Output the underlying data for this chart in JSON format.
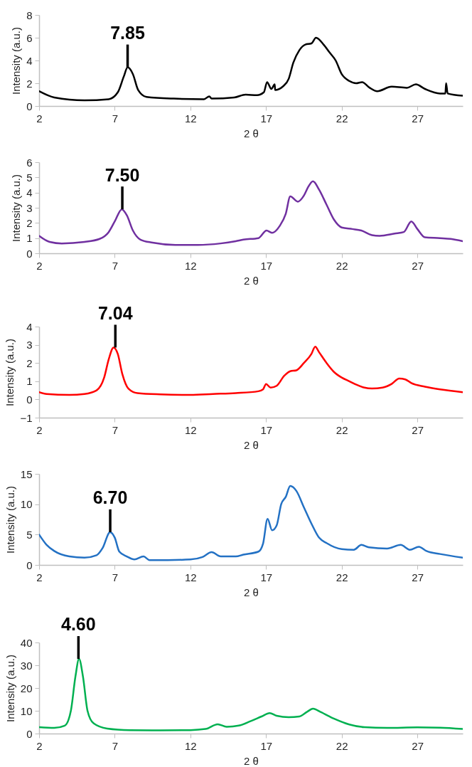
{
  "chart_data": [
    {
      "type": "line",
      "xlabel": "2 θ",
      "ylabel": "Intensity (a.u.)",
      "xlim": [
        2,
        30
      ],
      "xticks": [
        2,
        7,
        12,
        17,
        22,
        27
      ],
      "ylim": [
        0,
        8
      ],
      "yticks": [
        0,
        2,
        4,
        6,
        8
      ],
      "grid": false,
      "x": [
        2,
        3,
        5,
        6.6,
        7.2,
        7.6,
        7.85,
        8.2,
        8.55,
        9.1,
        10.9,
        12.9,
        13.25,
        13.4,
        14.9,
        15.65,
        16.4,
        16.85,
        17.07,
        17.35,
        17.57,
        17.6,
        18.1,
        18.5,
        18.8,
        19.2,
        19.6,
        20,
        20.3,
        20.8,
        21.2,
        21.6,
        22,
        22.5,
        22.95,
        23.35,
        23.85,
        24.35,
        25.3,
        26.3,
        26.9,
        27.5,
        28.5,
        28.85,
        28.9,
        29,
        30
      ],
      "series": [
        {
          "color": "#000000",
          "values": [
            1.3,
            0.75,
            0.5,
            0.6,
            1.2,
            2.6,
            3.4,
            2.8,
            1.4,
            0.8,
            0.65,
            0.6,
            0.85,
            0.65,
            0.75,
            1.0,
            0.95,
            1.2,
            2.1,
            1.5,
            1.9,
            1.4,
            1.7,
            2.4,
            3.8,
            4.9,
            5.4,
            5.5,
            6.0,
            5.4,
            4.7,
            4.0,
            2.8,
            2.2,
            2.0,
            2.1,
            1.6,
            1.3,
            1.7,
            1.6,
            1.9,
            1.5,
            1.1,
            1.1,
            2.0,
            1.1,
            0.9
          ]
        }
      ],
      "annotations": [
        {
          "text": "7.85",
          "x": 7.85,
          "y": 3.4
        }
      ]
    },
    {
      "type": "line",
      "xlabel": "2 θ",
      "ylabel": "Intensity (a.u.)",
      "xlim": [
        2,
        30
      ],
      "xticks": [
        2,
        7,
        12,
        17,
        22,
        27
      ],
      "ylim": [
        0,
        6
      ],
      "yticks": [
        0,
        1,
        2,
        3,
        4,
        5,
        6
      ],
      "grid": false,
      "x": [
        2,
        2.7,
        3.5,
        5,
        6,
        6.6,
        7,
        7.47,
        7.8,
        8.2,
        8.7,
        9.5,
        11,
        12.5,
        14,
        15,
        15.5,
        16.5,
        17.03,
        17.4,
        17.9,
        18.3,
        18.6,
        19.1,
        19.5,
        19.8,
        20.1,
        20.5,
        21,
        21.5,
        22,
        22.7,
        23.3,
        24,
        24.5,
        25.5,
        26.1,
        26.6,
        27,
        27.5,
        28.5,
        29.2,
        30
      ],
      "series": [
        {
          "color": "#7030a0",
          "values": [
            1.15,
            0.75,
            0.65,
            0.75,
            0.95,
            1.4,
            2.1,
            2.9,
            2.5,
            1.5,
            0.9,
            0.7,
            0.55,
            0.55,
            0.65,
            0.8,
            0.9,
            1.0,
            1.5,
            1.35,
            1.8,
            2.6,
            3.75,
            3.4,
            3.8,
            4.4,
            4.75,
            4.2,
            3.2,
            2.2,
            1.7,
            1.6,
            1.5,
            1.2,
            1.15,
            1.3,
            1.4,
            2.1,
            1.6,
            1.05,
            1.0,
            0.95,
            0.8
          ]
        }
      ],
      "annotations": [
        {
          "text": "7.50",
          "x": 7.5,
          "y": 2.9
        }
      ]
    },
    {
      "type": "line",
      "xlabel": "2 θ",
      "ylabel": "Intensity (a.u.)",
      "xlim": [
        2,
        30
      ],
      "xticks": [
        2,
        7,
        12,
        17,
        22,
        27
      ],
      "ylim": [
        -1,
        4
      ],
      "yticks": [
        -1,
        0,
        1,
        2,
        3,
        4
      ],
      "grid": false,
      "x": [
        2,
        2.5,
        4,
        5,
        5.8,
        6.3,
        6.6,
        6.92,
        7.2,
        7.5,
        7.9,
        8.5,
        10,
        12,
        13.5,
        15,
        16.5,
        16.8,
        17,
        17.3,
        17.7,
        18.2,
        18.6,
        19,
        19.5,
        20,
        20.25,
        20.5,
        21,
        21.5,
        22,
        22.5,
        23,
        23.5,
        24,
        24.7,
        25.3,
        25.8,
        26.2,
        26.6,
        27.5,
        28.5,
        30
      ],
      "series": [
        {
          "color": "#ff0000",
          "values": [
            0.4,
            0.3,
            0.25,
            0.3,
            0.5,
            1.2,
            2.2,
            2.85,
            2.5,
            1.4,
            0.6,
            0.35,
            0.28,
            0.25,
            0.3,
            0.35,
            0.45,
            0.55,
            0.85,
            0.65,
            0.75,
            1.3,
            1.55,
            1.6,
            2.0,
            2.5,
            2.9,
            2.6,
            2.0,
            1.5,
            1.2,
            1.0,
            0.8,
            0.65,
            0.6,
            0.65,
            0.85,
            1.15,
            1.1,
            0.9,
            0.7,
            0.55,
            0.4
          ]
        }
      ],
      "annotations": [
        {
          "text": "7.04",
          "x": 7.04,
          "y": 2.85
        }
      ]
    },
    {
      "type": "line",
      "xlabel": "2 θ",
      "ylabel": "Intensity (a.u.)",
      "xlim": [
        2,
        30
      ],
      "xticks": [
        2,
        7,
        12,
        17,
        22,
        27
      ],
      "ylim": [
        0,
        15
      ],
      "yticks": [
        0,
        5,
        10,
        15
      ],
      "grid": false,
      "x": [
        2,
        2.5,
        3,
        4,
        5,
        5.8,
        6.2,
        6.69,
        7,
        7.3,
        7.8,
        8.3,
        8.9,
        9.3,
        10.5,
        12,
        12.8,
        13.4,
        14,
        15,
        15.5,
        16.5,
        16.8,
        17.1,
        17.4,
        17.7,
        18,
        18.3,
        18.6,
        19,
        19.5,
        20,
        20.5,
        21,
        22,
        22.8,
        23.3,
        23.8,
        25,
        25.9,
        26.5,
        27.1,
        27.6,
        28.5,
        30
      ],
      "series": [
        {
          "color": "#2371c4",
          "values": [
            5.0,
            3.3,
            2.3,
            1.4,
            1.2,
            1.6,
            2.8,
            5.4,
            4.5,
            2.2,
            1.4,
            0.9,
            1.4,
            0.8,
            0.8,
            0.9,
            1.3,
            2.1,
            1.4,
            1.4,
            1.7,
            2.2,
            3.5,
            7.6,
            5.7,
            6.5,
            10.0,
            11.2,
            13.0,
            12.2,
            9.5,
            6.8,
            4.5,
            3.6,
            2.6,
            2.5,
            3.3,
            2.9,
            2.7,
            3.3,
            2.5,
            3.0,
            2.3,
            1.8,
            1.2
          ]
        }
      ],
      "annotations": [
        {
          "text": "6.70",
          "x": 6.7,
          "y": 5.4
        }
      ]
    },
    {
      "type": "line",
      "xlabel": "2 θ",
      "ylabel": "Intensity (a.u.)",
      "xlim": [
        2,
        30
      ],
      "xticks": [
        2,
        7,
        12,
        17,
        22,
        27
      ],
      "ylim": [
        0,
        40
      ],
      "yticks": [
        0,
        10,
        20,
        30,
        40
      ],
      "grid": false,
      "x": [
        2,
        3,
        3.7,
        4.1,
        4.4,
        4.64,
        4.9,
        5.2,
        5.6,
        6.5,
        8,
        10,
        12,
        13,
        13.8,
        14.4,
        15.2,
        16,
        16.7,
        17.24,
        17.7,
        18.5,
        19.2,
        19.7,
        20.1,
        20.6,
        21.5,
        22.5,
        23.5,
        25,
        27,
        28.5,
        30
      ],
      "series": [
        {
          "color": "#00b050",
          "values": [
            2.8,
            2.5,
            3.5,
            10,
            25,
            32.8,
            25,
            10,
            4.5,
            2.2,
            1.5,
            1.4,
            1.5,
            2.0,
            4.1,
            3.0,
            3.5,
            5.5,
            7.5,
            9.0,
            7.8,
            7.2,
            7.5,
            9.5,
            10.9,
            9.5,
            6.5,
            4.0,
            2.8,
            2.5,
            2.7,
            2.6,
            2.0
          ]
        }
      ],
      "annotations": [
        {
          "text": "4.60",
          "x": 4.6,
          "y": 32.8
        }
      ]
    }
  ]
}
